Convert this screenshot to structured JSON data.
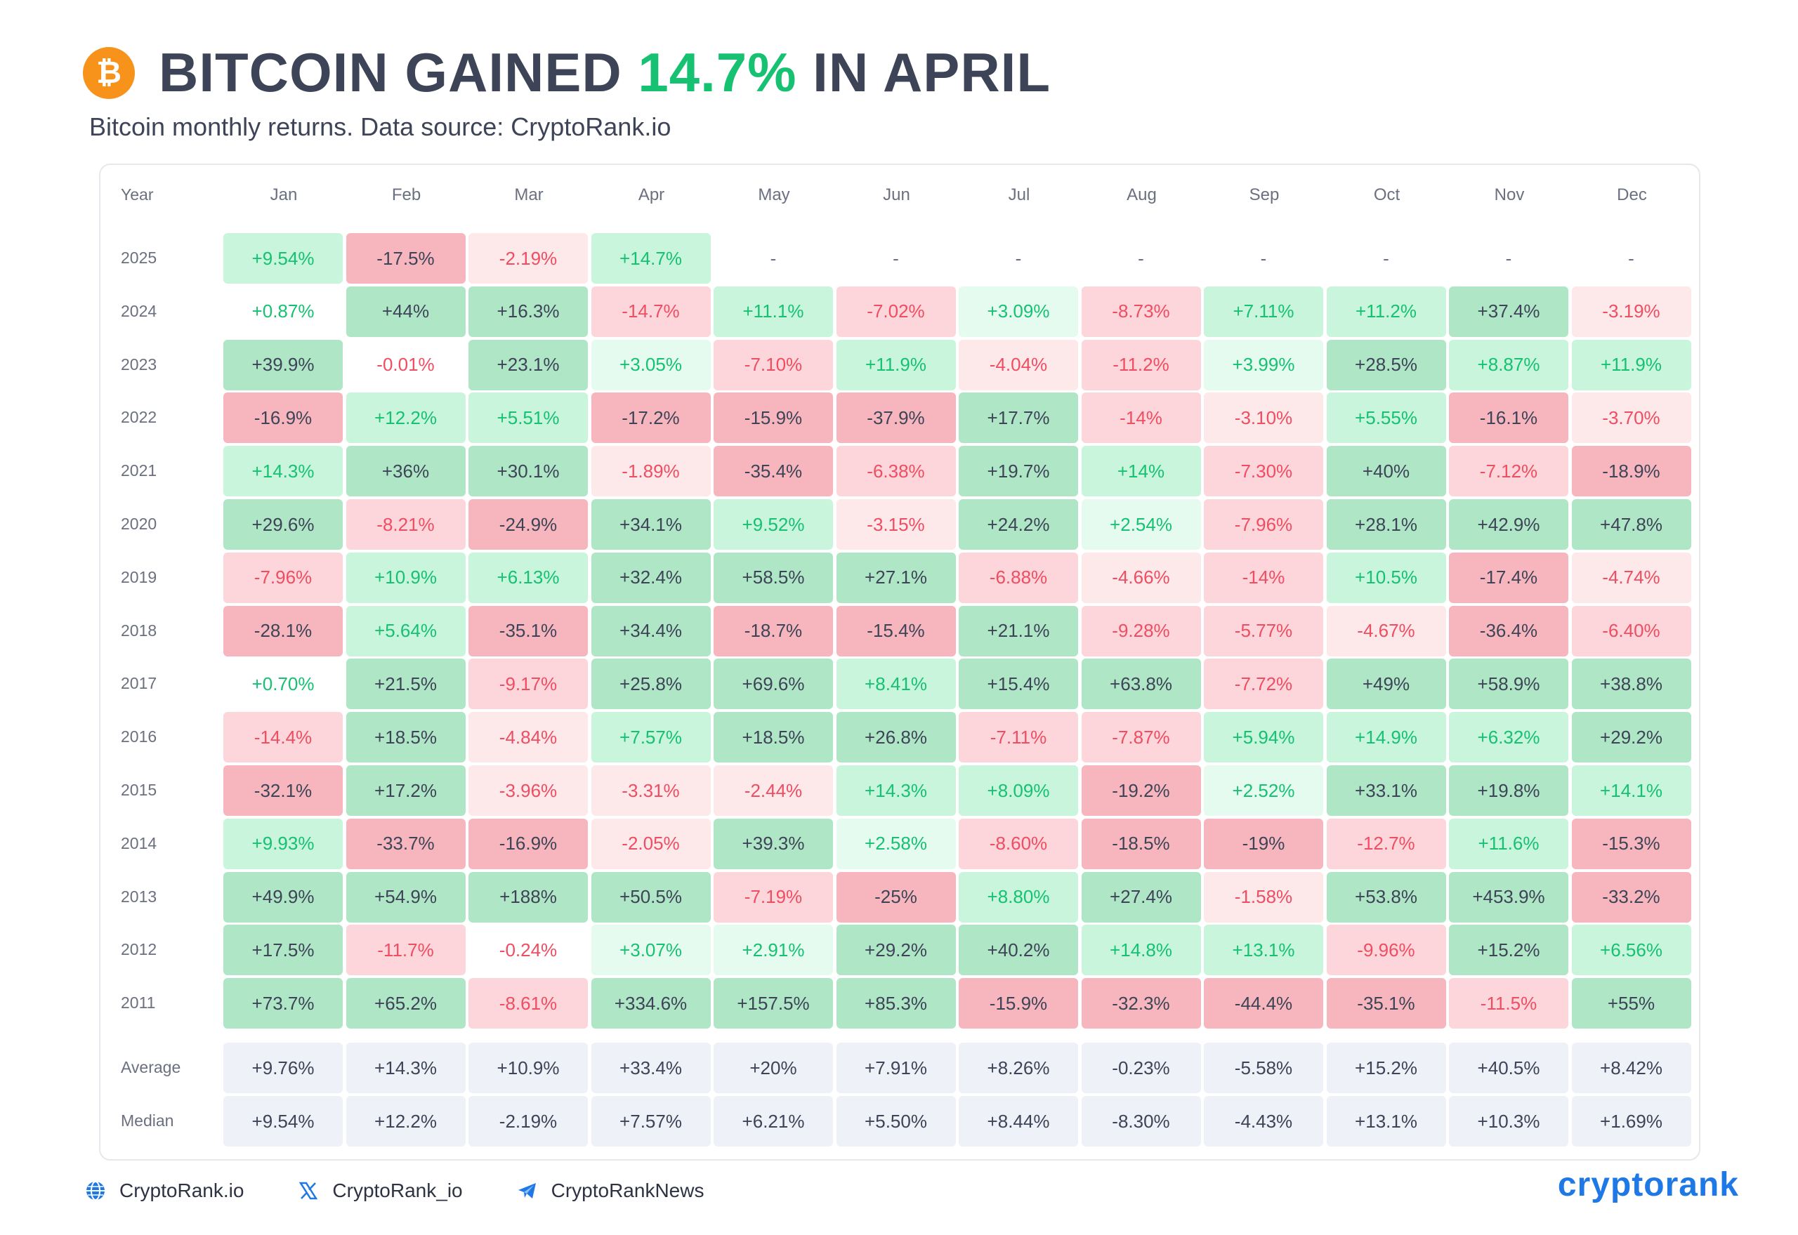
{
  "header": {
    "logo_glyph": "₿",
    "title_pre": "BITCOIN GAINED ",
    "title_highlight": "14.7%",
    "title_post": " IN APRIL",
    "subtitle": "Bitcoin monthly returns. Data source: CryptoRank.io"
  },
  "colors": {
    "strong_pos_bg": "#aee6c6",
    "pos_bg": "#c8f5dc",
    "weak_pos_bg": "#e6fbef",
    "strong_neg_bg": "#f7b6bd",
    "neg_bg": "#fcd6da",
    "weak_neg_bg": "#fde8ea",
    "neutral_bg": "#ffffff",
    "summary_bg": "#eef1f7",
    "pos_text": "#16c172",
    "neg_text": "#ef4d62",
    "dark_text": "#3e4457"
  },
  "chart_data": {
    "type": "table",
    "corner_label": "Year",
    "columns": [
      "Jan",
      "Feb",
      "Mar",
      "Apr",
      "May",
      "Jun",
      "Jul",
      "Aug",
      "Sep",
      "Oct",
      "Nov",
      "Dec"
    ],
    "rows": [
      {
        "year": "2025",
        "values": [
          "+9.54%",
          "-17.5%",
          "-2.19%",
          "+14.7%",
          "-",
          "-",
          "-",
          "-",
          "-",
          "-",
          "-",
          "-"
        ]
      },
      {
        "year": "2024",
        "values": [
          "+0.87%",
          "+44%",
          "+16.3%",
          "-14.7%",
          "+11.1%",
          "-7.02%",
          "+3.09%",
          "-8.73%",
          "+7.11%",
          "+11.2%",
          "+37.4%",
          "-3.19%"
        ]
      },
      {
        "year": "2023",
        "values": [
          "+39.9%",
          "-0.01%",
          "+23.1%",
          "+3.05%",
          "-7.10%",
          "+11.9%",
          "-4.04%",
          "-11.2%",
          "+3.99%",
          "+28.5%",
          "+8.87%",
          "+11.9%"
        ]
      },
      {
        "year": "2022",
        "values": [
          "-16.9%",
          "+12.2%",
          "+5.51%",
          "-17.2%",
          "-15.9%",
          "-37.9%",
          "+17.7%",
          "-14%",
          "-3.10%",
          "+5.55%",
          "-16.1%",
          "-3.70%"
        ]
      },
      {
        "year": "2021",
        "values": [
          "+14.3%",
          "+36%",
          "+30.1%",
          "-1.89%",
          "-35.4%",
          "-6.38%",
          "+19.7%",
          "+14%",
          "-7.30%",
          "+40%",
          "-7.12%",
          "-18.9%"
        ]
      },
      {
        "year": "2020",
        "values": [
          "+29.6%",
          "-8.21%",
          "-24.9%",
          "+34.1%",
          "+9.52%",
          "-3.15%",
          "+24.2%",
          "+2.54%",
          "-7.96%",
          "+28.1%",
          "+42.9%",
          "+47.8%"
        ]
      },
      {
        "year": "2019",
        "values": [
          "-7.96%",
          "+10.9%",
          "+6.13%",
          "+32.4%",
          "+58.5%",
          "+27.1%",
          "-6.88%",
          "-4.66%",
          "-14%",
          "+10.5%",
          "-17.4%",
          "-4.74%"
        ]
      },
      {
        "year": "2018",
        "values": [
          "-28.1%",
          "+5.64%",
          "-35.1%",
          "+34.4%",
          "-18.7%",
          "-15.4%",
          "+21.1%",
          "-9.28%",
          "-5.77%",
          "-4.67%",
          "-36.4%",
          "-6.40%"
        ]
      },
      {
        "year": "2017",
        "values": [
          "+0.70%",
          "+21.5%",
          "-9.17%",
          "+25.8%",
          "+69.6%",
          "+8.41%",
          "+15.4%",
          "+63.8%",
          "-7.72%",
          "+49%",
          "+58.9%",
          "+38.8%"
        ]
      },
      {
        "year": "2016",
        "values": [
          "-14.4%",
          "+18.5%",
          "-4.84%",
          "+7.57%",
          "+18.5%",
          "+26.8%",
          "-7.11%",
          "-7.87%",
          "+5.94%",
          "+14.9%",
          "+6.32%",
          "+29.2%"
        ]
      },
      {
        "year": "2015",
        "values": [
          "-32.1%",
          "+17.2%",
          "-3.96%",
          "-3.31%",
          "-2.44%",
          "+14.3%",
          "+8.09%",
          "-19.2%",
          "+2.52%",
          "+33.1%",
          "+19.8%",
          "+14.1%"
        ]
      },
      {
        "year": "2014",
        "values": [
          "+9.93%",
          "-33.7%",
          "-16.9%",
          "-2.05%",
          "+39.3%",
          "+2.58%",
          "-8.60%",
          "-18.5%",
          "-19%",
          "-12.7%",
          "+11.6%",
          "-15.3%"
        ]
      },
      {
        "year": "2013",
        "values": [
          "+49.9%",
          "+54.9%",
          "+188%",
          "+50.5%",
          "-7.19%",
          "-25%",
          "+8.80%",
          "+27.4%",
          "-1.58%",
          "+53.8%",
          "+453.9%",
          "-33.2%"
        ]
      },
      {
        "year": "2012",
        "values": [
          "+17.5%",
          "-11.7%",
          "-0.24%",
          "+3.07%",
          "+2.91%",
          "+29.2%",
          "+40.2%",
          "+14.8%",
          "+13.1%",
          "-9.96%",
          "+15.2%",
          "+6.56%"
        ]
      },
      {
        "year": "2011",
        "values": [
          "+73.7%",
          "+65.2%",
          "-8.61%",
          "+334.6%",
          "+157.5%",
          "+85.3%",
          "-15.9%",
          "-32.3%",
          "-44.4%",
          "-35.1%",
          "-11.5%",
          "+55%"
        ]
      }
    ],
    "summary": [
      {
        "label": "Average",
        "values": [
          "+9.76%",
          "+14.3%",
          "+10.9%",
          "+33.4%",
          "+20%",
          "+7.91%",
          "+8.26%",
          "-0.23%",
          "-5.58%",
          "+15.2%",
          "+40.5%",
          "+8.42%"
        ]
      },
      {
        "label": "Median",
        "values": [
          "+9.54%",
          "+12.2%",
          "-2.19%",
          "+7.57%",
          "+6.21%",
          "+5.50%",
          "+8.44%",
          "-8.30%",
          "-4.43%",
          "+13.1%",
          "+10.3%",
          "+1.69%"
        ]
      }
    ]
  },
  "footer": {
    "website": "CryptoRank.io",
    "x_handle": "CryptoRank_io",
    "telegram": "CryptoRankNews",
    "brand": "cryptorank"
  }
}
